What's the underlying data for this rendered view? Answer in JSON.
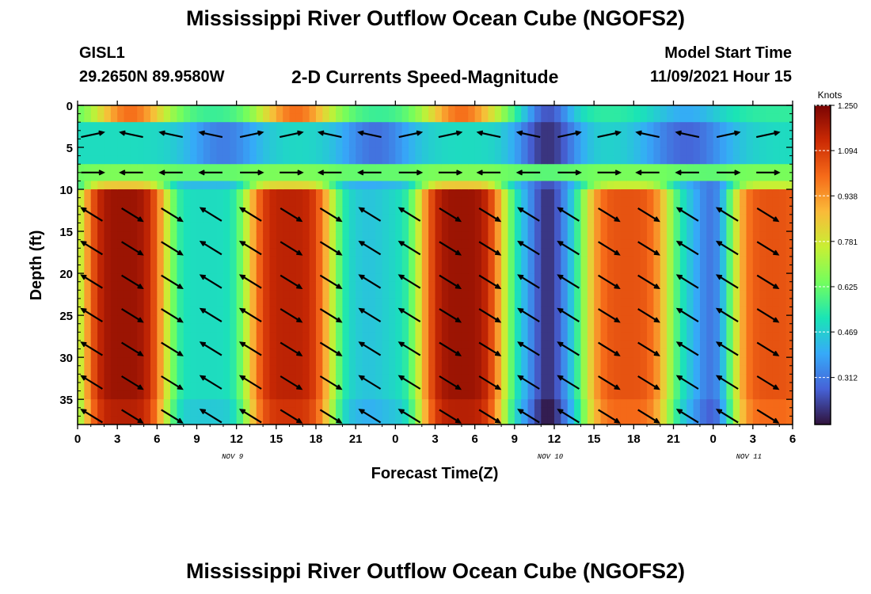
{
  "header": {
    "title": "Mississippi River Outflow Ocean Cube (NGOFS2)",
    "station": "GISL1",
    "coordinates": "29.2650N  89.9580W",
    "product": "2-D Currents Speed-Magnitude",
    "model_start_label": "Model Start Time",
    "model_start_time": "11/09/2021 Hour 15"
  },
  "footer": {
    "title": "Mississippi River Outflow Ocean Cube (NGOFS2)"
  },
  "chart_data": {
    "type": "heatmap",
    "title": "2-D Currents Speed-Magnitude",
    "xlabel": "Forecast Time(Z)",
    "ylabel": "Depth (ft)",
    "x_tick_labels": [
      "0",
      "3",
      "6",
      "9",
      "12",
      "15",
      "18",
      "21",
      "0",
      "3",
      "6",
      "9",
      "12",
      "15",
      "18",
      "21",
      "0",
      "3",
      "6"
    ],
    "x_range_hours": [
      0,
      54
    ],
    "date_labels": [
      {
        "hour": 12,
        "label": "NOV 9"
      },
      {
        "hour": 36,
        "label": "NOV 10"
      },
      {
        "hour": 51,
        "label": "NOV 11"
      }
    ],
    "y_ticks": [
      0,
      5,
      10,
      15,
      20,
      25,
      30,
      35
    ],
    "y_range": [
      0,
      38
    ],
    "y_inverted": true,
    "colorbar": {
      "unit": "Knots",
      "min": 0.15,
      "max": 1.25,
      "tick_values": [
        1.25,
        1.094,
        0.938,
        0.781,
        0.625,
        0.469,
        0.312
      ],
      "tick_labels": [
        "1.250",
        "1.094",
        "0.938",
        "0.781",
        "0.625",
        "0.469",
        "0.312"
      ],
      "colormap": [
        "#30123b",
        "#4662d7",
        "#36aaf9",
        "#1ae4b6",
        "#72fe5e",
        "#c8ef34",
        "#faba39",
        "#f66b19",
        "#cb2a04",
        "#7a0403"
      ]
    },
    "vector_columns_hours": [
      0,
      3,
      6,
      9,
      12,
      15,
      18,
      21,
      24,
      27,
      30,
      33,
      36,
      39,
      42,
      45,
      48,
      51,
      54
    ],
    "speed_peaks": [
      {
        "hour": 3.5,
        "value": 1.2
      },
      {
        "hour": 16,
        "value": 1.15
      },
      {
        "hour": 29,
        "value": 1.2
      },
      {
        "hour": 41.5,
        "value": 1.05
      },
      {
        "hour": 52.5,
        "value": 1.05
      }
    ],
    "speed_minima": [
      {
        "hour": 22,
        "value": 0.45
      },
      {
        "hour": 35.5,
        "value": 0.2
      },
      {
        "hour": 48,
        "value": 0.3
      }
    ]
  }
}
